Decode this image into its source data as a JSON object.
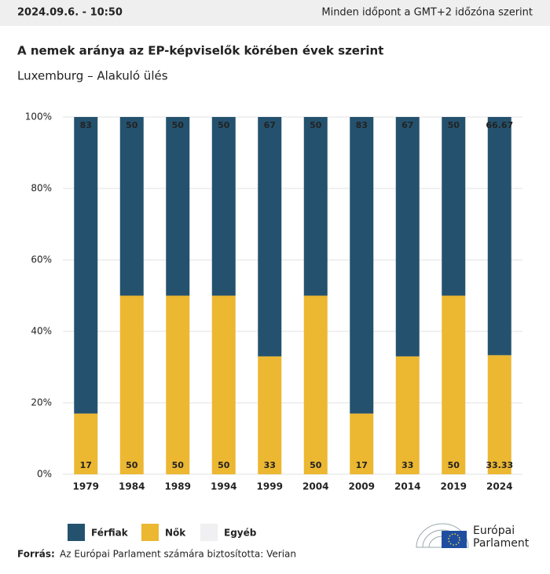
{
  "header": {
    "date": "2024.09.6. - 10:50",
    "timezone_note": "Minden időpont a GMT+2 időzóna szerint"
  },
  "chart_data": {
    "type": "stacked_bar",
    "title": "A nemek aránya az EP-képviselők körében évek szerint",
    "subtitle": "Luxemburg – Alakuló ülés",
    "categories": [
      "1979",
      "1984",
      "1989",
      "1994",
      "1999",
      "2004",
      "2009",
      "2014",
      "2019",
      "2024"
    ],
    "series": [
      {
        "name": "Nők",
        "color": "#ecb731",
        "values": [
          17,
          50,
          50,
          50,
          33,
          50,
          17,
          33,
          50,
          33.33
        ]
      },
      {
        "name": "Férfiak",
        "color": "#24526e",
        "values": [
          83,
          50,
          50,
          50,
          67,
          50,
          83,
          67,
          50,
          66.67
        ]
      },
      {
        "name": "Egyéb",
        "color": "#f0f0f2",
        "values": [
          0,
          0,
          0,
          0,
          0,
          0,
          0,
          0,
          0,
          0
        ]
      }
    ],
    "legend_order": [
      1,
      0,
      2
    ],
    "ylim": [
      0,
      100
    ],
    "yticks": [
      {
        "value": 0,
        "label": "0%"
      },
      {
        "value": 20,
        "label": "20%"
      },
      {
        "value": 40,
        "label": "40%"
      },
      {
        "value": 60,
        "label": "60%"
      },
      {
        "value": 80,
        "label": "80%"
      },
      {
        "value": 100,
        "label": "100%"
      }
    ],
    "grid": true
  },
  "source": {
    "label": "Forrás:",
    "text": "Az Európai Parlament számára biztosította: Verian"
  },
  "logo": {
    "line1": "Európai",
    "line2": "Parlament"
  }
}
